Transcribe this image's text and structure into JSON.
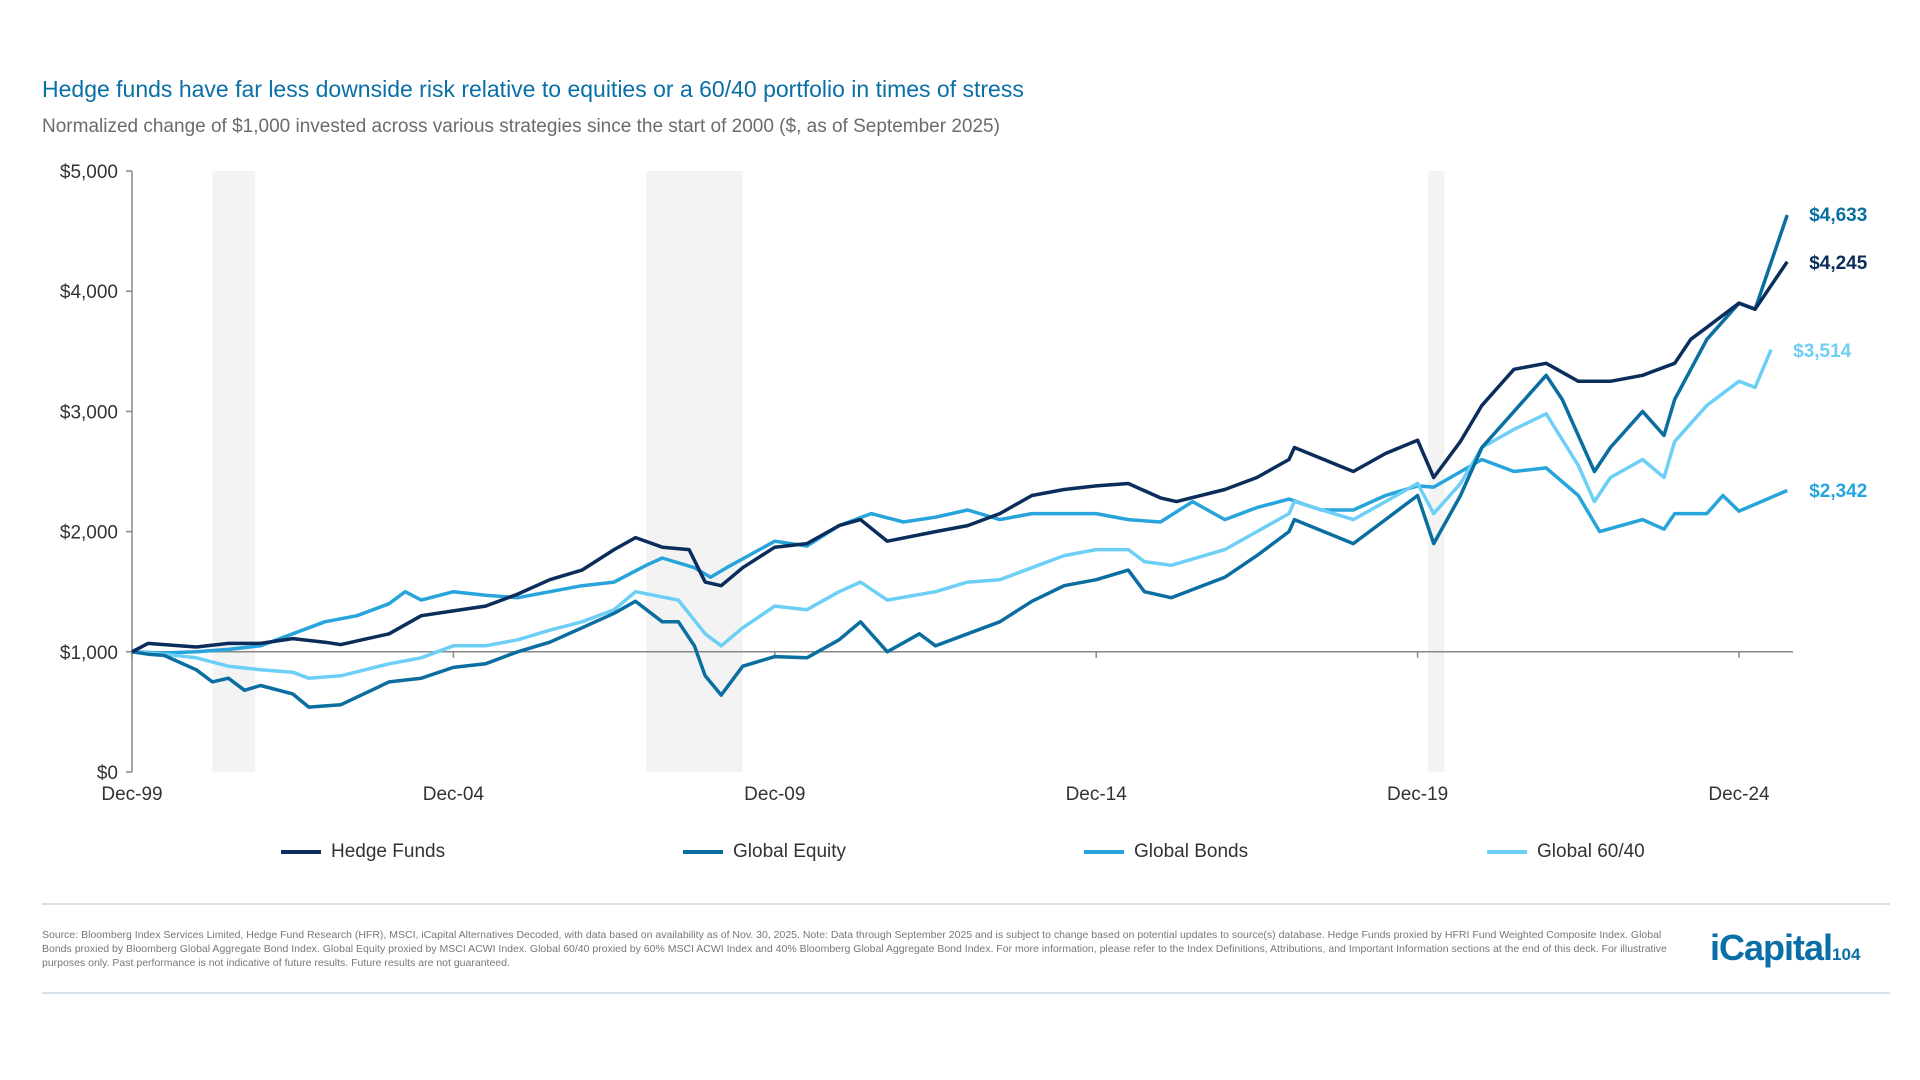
{
  "title": "Hedge funds have far less downside risk relative to equities or a 60/40 portfolio in times of stress",
  "subtitle": "Normalized change of $1,000 invested across various strategies since the start of 2000 ($, as of September 2025)",
  "footnote": "Source: Bloomberg Index Services Limited, Hedge Fund Research (HFR), MSCI, iCapital Alternatives Decoded, with data based on availability as of Nov. 30, 2025. Note: Data through September 2025 and is subject to change based on potential updates to source(s) database. Hedge Funds proxied by HFRI Fund Weighted Composite Index. Global Bonds proxied by Bloomberg Global Aggregate Bond Index. Global Equity proxied by MSCI ACWI Index. Global 60/40 proxied by 60% MSCI ACWI Index and 40% Bloomberg Global Aggregate Bond Index. For more information, please refer to the Index Definitions, Attributions, and Important Information sections at the end of this deck. For illustrative purposes only. Past performance is not indicative of future results. Future results are not guaranteed.",
  "logo": {
    "text": "iCapital",
    "page_number": "104"
  },
  "chart_data": {
    "type": "line",
    "title": "",
    "xlabel": "",
    "ylabel": "",
    "ylim": [
      0,
      5000
    ],
    "yticks": [
      0,
      1000,
      2000,
      3000,
      4000,
      5000
    ],
    "ytick_labels": [
      "$0",
      "$1,000",
      "$2,000",
      "$3,000",
      "$4,000",
      "$5,000"
    ],
    "xlim": [
      "1999-12",
      "2025-09"
    ],
    "xticks": [
      "1999-12",
      "2004-12",
      "2009-12",
      "2014-12",
      "2019-12",
      "2024-12"
    ],
    "xtick_labels": [
      "Dec-99",
      "Dec-04",
      "Dec-09",
      "Dec-14",
      "Dec-19",
      "Dec-24"
    ],
    "reference_line": 1000,
    "shaded_periods": [
      [
        "2001-03",
        "2001-11"
      ],
      [
        "2007-12",
        "2009-06"
      ],
      [
        "2020-02",
        "2020-05"
      ]
    ],
    "grid": false,
    "legend_position": "bottom",
    "series": [
      {
        "name": "Hedge Funds",
        "color": "#0b2d5b",
        "end_label": "$4,245",
        "label_color": "#0b2d5b",
        "points": [
          [
            "1999-12",
            1000
          ],
          [
            "2000-03",
            1070
          ],
          [
            "2000-06",
            1060
          ],
          [
            "2000-12",
            1040
          ],
          [
            "2001-06",
            1070
          ],
          [
            "2001-12",
            1070
          ],
          [
            "2002-06",
            1110
          ],
          [
            "2002-12",
            1080
          ],
          [
            "2003-03",
            1060
          ],
          [
            "2003-12",
            1150
          ],
          [
            "2004-06",
            1300
          ],
          [
            "2004-12",
            1340
          ],
          [
            "2005-06",
            1380
          ],
          [
            "2005-12",
            1480
          ],
          [
            "2006-06",
            1600
          ],
          [
            "2006-12",
            1680
          ],
          [
            "2007-06",
            1850
          ],
          [
            "2007-10",
            1950
          ],
          [
            "2008-03",
            1870
          ],
          [
            "2008-08",
            1850
          ],
          [
            "2008-11",
            1580
          ],
          [
            "2009-02",
            1550
          ],
          [
            "2009-06",
            1700
          ],
          [
            "2009-12",
            1870
          ],
          [
            "2010-06",
            1900
          ],
          [
            "2010-12",
            2050
          ],
          [
            "2011-04",
            2100
          ],
          [
            "2011-09",
            1920
          ],
          [
            "2012-06",
            2000
          ],
          [
            "2012-12",
            2050
          ],
          [
            "2013-06",
            2150
          ],
          [
            "2013-12",
            2300
          ],
          [
            "2014-06",
            2350
          ],
          [
            "2014-12",
            2380
          ],
          [
            "2015-06",
            2400
          ],
          [
            "2015-12",
            2280
          ],
          [
            "2016-03",
            2250
          ],
          [
            "2016-12",
            2350
          ],
          [
            "2017-06",
            2450
          ],
          [
            "2017-12",
            2600
          ],
          [
            "2018-01",
            2700
          ],
          [
            "2018-12",
            2500
          ],
          [
            "2019-06",
            2650
          ],
          [
            "2019-12",
            2760
          ],
          [
            "2020-03",
            2450
          ],
          [
            "2020-08",
            2750
          ],
          [
            "2020-12",
            3050
          ],
          [
            "2021-06",
            3350
          ],
          [
            "2021-12",
            3400
          ],
          [
            "2022-06",
            3250
          ],
          [
            "2022-12",
            3250
          ],
          [
            "2023-06",
            3300
          ],
          [
            "2023-12",
            3400
          ],
          [
            "2024-03",
            3600
          ],
          [
            "2024-06",
            3700
          ],
          [
            "2024-12",
            3900
          ],
          [
            "2025-03",
            3850
          ],
          [
            "2025-09",
            4245
          ]
        ]
      },
      {
        "name": "Global Equity",
        "color": "#0a6fa0",
        "end_label": "$4,633",
        "label_color": "#0a6fa0",
        "points": [
          [
            "1999-12",
            1000
          ],
          [
            "2000-03",
            980
          ],
          [
            "2000-06",
            970
          ],
          [
            "2000-12",
            850
          ],
          [
            "2001-03",
            750
          ],
          [
            "2001-06",
            780
          ],
          [
            "2001-09",
            680
          ],
          [
            "2001-12",
            720
          ],
          [
            "2002-06",
            650
          ],
          [
            "2002-09",
            540
          ],
          [
            "2003-03",
            560
          ],
          [
            "2003-12",
            750
          ],
          [
            "2004-06",
            780
          ],
          [
            "2004-12",
            870
          ],
          [
            "2005-06",
            900
          ],
          [
            "2005-12",
            1000
          ],
          [
            "2006-06",
            1080
          ],
          [
            "2006-12",
            1200
          ],
          [
            "2007-06",
            1320
          ],
          [
            "2007-10",
            1420
          ],
          [
            "2008-03",
            1250
          ],
          [
            "2008-06",
            1250
          ],
          [
            "2008-09",
            1050
          ],
          [
            "2008-11",
            800
          ],
          [
            "2009-02",
            640
          ],
          [
            "2009-06",
            880
          ],
          [
            "2009-12",
            960
          ],
          [
            "2010-06",
            950
          ],
          [
            "2010-12",
            1100
          ],
          [
            "2011-04",
            1250
          ],
          [
            "2011-09",
            1000
          ],
          [
            "2012-03",
            1150
          ],
          [
            "2012-06",
            1050
          ],
          [
            "2012-12",
            1150
          ],
          [
            "2013-06",
            1250
          ],
          [
            "2013-12",
            1420
          ],
          [
            "2014-06",
            1550
          ],
          [
            "2014-12",
            1600
          ],
          [
            "2015-06",
            1680
          ],
          [
            "2015-09",
            1500
          ],
          [
            "2016-02",
            1450
          ],
          [
            "2016-12",
            1620
          ],
          [
            "2017-06",
            1800
          ],
          [
            "2017-12",
            2000
          ],
          [
            "2018-01",
            2100
          ],
          [
            "2018-12",
            1900
          ],
          [
            "2019-06",
            2100
          ],
          [
            "2019-12",
            2300
          ],
          [
            "2020-03",
            1900
          ],
          [
            "2020-08",
            2300
          ],
          [
            "2020-12",
            2700
          ],
          [
            "2021-06",
            3000
          ],
          [
            "2021-12",
            3300
          ],
          [
            "2022-03",
            3100
          ],
          [
            "2022-09",
            2500
          ],
          [
            "2022-12",
            2700
          ],
          [
            "2023-06",
            3000
          ],
          [
            "2023-10",
            2800
          ],
          [
            "2023-12",
            3100
          ],
          [
            "2024-06",
            3600
          ],
          [
            "2024-12",
            3900
          ],
          [
            "2025-03",
            3850
          ],
          [
            "2025-09",
            4633
          ]
        ]
      },
      {
        "name": "Global Bonds",
        "color": "#27a4dc",
        "end_label": "$2,342",
        "label_color": "#27a4dc",
        "points": [
          [
            "1999-12",
            1000
          ],
          [
            "2000-06",
            990
          ],
          [
            "2000-12",
            1000
          ],
          [
            "2001-06",
            1020
          ],
          [
            "2001-12",
            1050
          ],
          [
            "2002-06",
            1150
          ],
          [
            "2002-12",
            1250
          ],
          [
            "2003-06",
            1300
          ],
          [
            "2003-12",
            1400
          ],
          [
            "2004-03",
            1500
          ],
          [
            "2004-06",
            1430
          ],
          [
            "2004-12",
            1500
          ],
          [
            "2005-06",
            1470
          ],
          [
            "2005-12",
            1450
          ],
          [
            "2006-06",
            1500
          ],
          [
            "2006-12",
            1550
          ],
          [
            "2007-06",
            1580
          ],
          [
            "2007-12",
            1720
          ],
          [
            "2008-03",
            1780
          ],
          [
            "2008-09",
            1700
          ],
          [
            "2008-12",
            1620
          ],
          [
            "2009-03",
            1700
          ],
          [
            "2009-12",
            1920
          ],
          [
            "2010-06",
            1880
          ],
          [
            "2010-12",
            2050
          ],
          [
            "2011-06",
            2150
          ],
          [
            "2011-12",
            2080
          ],
          [
            "2012-06",
            2120
          ],
          [
            "2012-12",
            2180
          ],
          [
            "2013-06",
            2100
          ],
          [
            "2013-12",
            2150
          ],
          [
            "2014-06",
            2150
          ],
          [
            "2014-12",
            2150
          ],
          [
            "2015-06",
            2100
          ],
          [
            "2015-12",
            2080
          ],
          [
            "2016-06",
            2250
          ],
          [
            "2016-12",
            2100
          ],
          [
            "2017-06",
            2200
          ],
          [
            "2017-12",
            2270
          ],
          [
            "2018-06",
            2180
          ],
          [
            "2018-12",
            2180
          ],
          [
            "2019-06",
            2300
          ],
          [
            "2019-12",
            2380
          ],
          [
            "2020-03",
            2370
          ],
          [
            "2020-12",
            2600
          ],
          [
            "2021-06",
            2500
          ],
          [
            "2021-12",
            2530
          ],
          [
            "2022-06",
            2300
          ],
          [
            "2022-10",
            2000
          ],
          [
            "2023-06",
            2100
          ],
          [
            "2023-10",
            2020
          ],
          [
            "2023-12",
            2150
          ],
          [
            "2024-06",
            2150
          ],
          [
            "2024-09",
            2300
          ],
          [
            "2024-12",
            2170
          ],
          [
            "2025-09",
            2342
          ]
        ]
      },
      {
        "name": "Global 60/40",
        "color": "#6dcff6",
        "end_label": "$3,514",
        "label_color": "#6dcff6",
        "points": [
          [
            "1999-12",
            1000
          ],
          [
            "2000-06",
            980
          ],
          [
            "2000-12",
            950
          ],
          [
            "2001-06",
            880
          ],
          [
            "2001-12",
            850
          ],
          [
            "2002-06",
            830
          ],
          [
            "2002-09",
            780
          ],
          [
            "2003-03",
            800
          ],
          [
            "2003-12",
            900
          ],
          [
            "2004-06",
            950
          ],
          [
            "2004-12",
            1050
          ],
          [
            "2005-06",
            1050
          ],
          [
            "2005-12",
            1100
          ],
          [
            "2006-06",
            1180
          ],
          [
            "2006-12",
            1250
          ],
          [
            "2007-06",
            1350
          ],
          [
            "2007-10",
            1500
          ],
          [
            "2008-06",
            1430
          ],
          [
            "2008-11",
            1150
          ],
          [
            "2009-02",
            1050
          ],
          [
            "2009-06",
            1200
          ],
          [
            "2009-12",
            1380
          ],
          [
            "2010-06",
            1350
          ],
          [
            "2010-12",
            1500
          ],
          [
            "2011-04",
            1580
          ],
          [
            "2011-09",
            1430
          ],
          [
            "2012-06",
            1500
          ],
          [
            "2012-12",
            1580
          ],
          [
            "2013-06",
            1600
          ],
          [
            "2013-12",
            1700
          ],
          [
            "2014-06",
            1800
          ],
          [
            "2014-12",
            1850
          ],
          [
            "2015-06",
            1850
          ],
          [
            "2015-09",
            1750
          ],
          [
            "2016-02",
            1720
          ],
          [
            "2016-12",
            1850
          ],
          [
            "2017-06",
            2000
          ],
          [
            "2017-12",
            2150
          ],
          [
            "2018-01",
            2250
          ],
          [
            "2018-12",
            2100
          ],
          [
            "2019-06",
            2250
          ],
          [
            "2019-12",
            2400
          ],
          [
            "2020-03",
            2150
          ],
          [
            "2020-08",
            2400
          ],
          [
            "2020-12",
            2700
          ],
          [
            "2021-06",
            2850
          ],
          [
            "2021-12",
            2980
          ],
          [
            "2022-06",
            2550
          ],
          [
            "2022-09",
            2250
          ],
          [
            "2022-12",
            2450
          ],
          [
            "2023-06",
            2600
          ],
          [
            "2023-10",
            2450
          ],
          [
            "2023-12",
            2750
          ],
          [
            "2024-06",
            3050
          ],
          [
            "2024-12",
            3250
          ],
          [
            "2025-03",
            3200
          ],
          [
            "2025-06",
            3514
          ]
        ]
      }
    ]
  }
}
